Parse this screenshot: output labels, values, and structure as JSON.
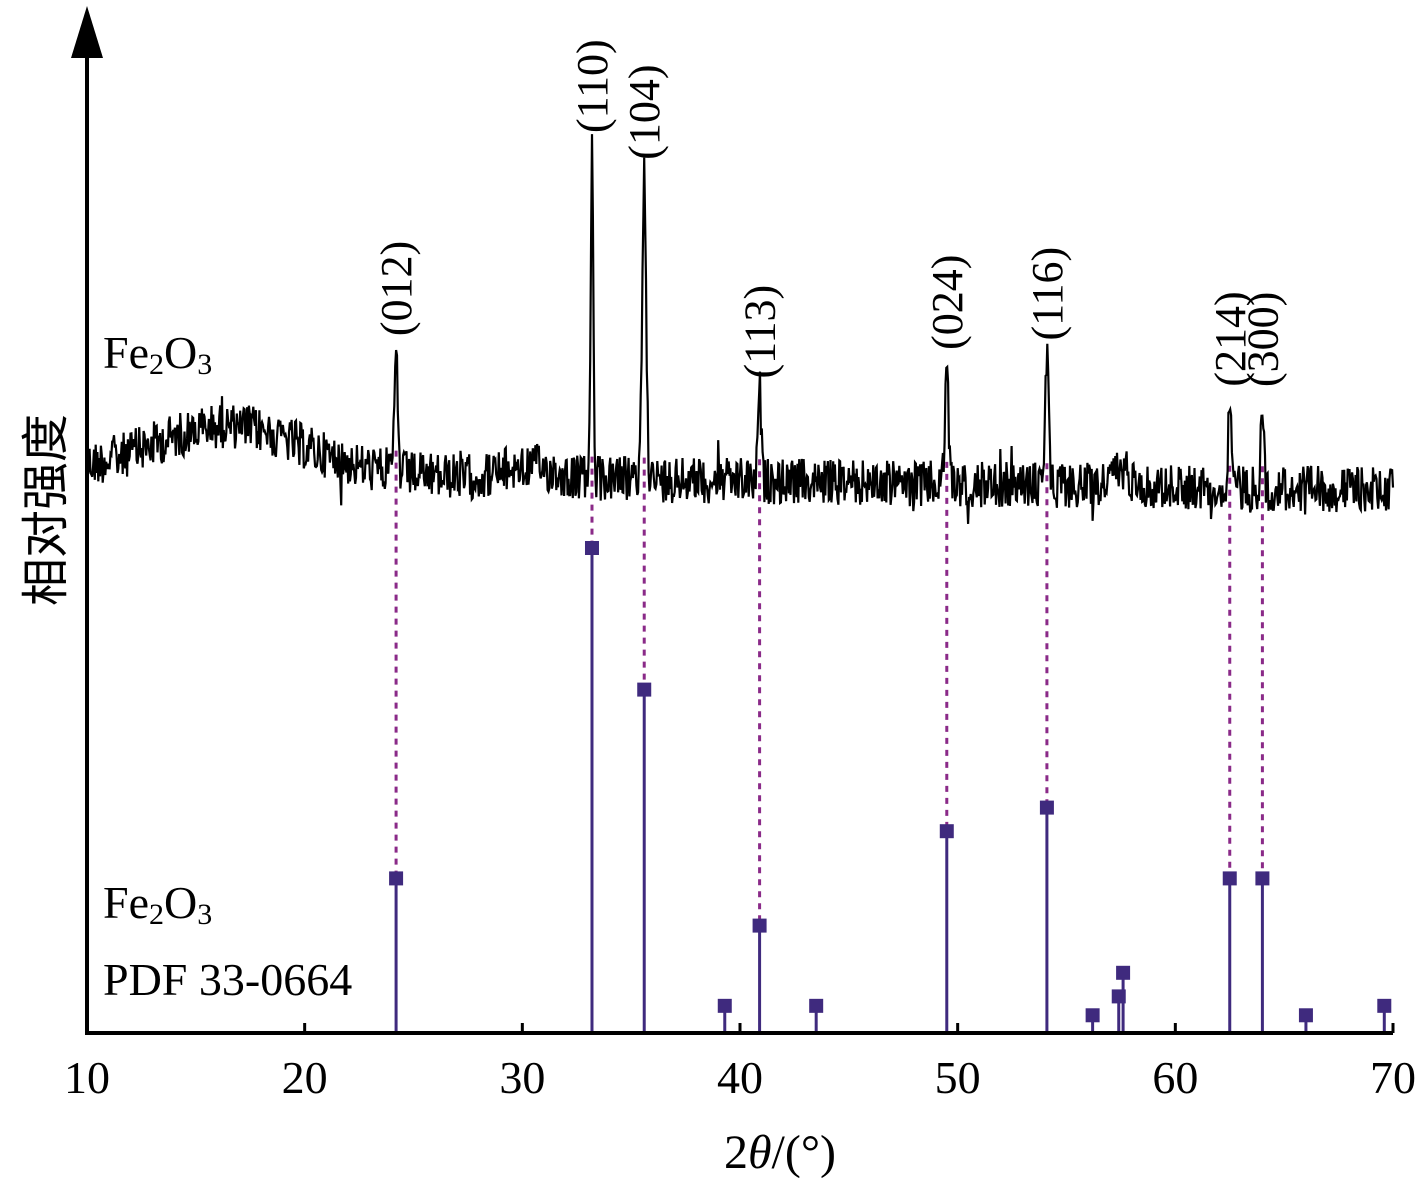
{
  "chart_data": {
    "type": "line",
    "xlabel_prefix": "2",
    "xlabel_symbol": "θ",
    "xlabel_unit": "/(°)",
    "ylabel": "相对强度",
    "xlim": [
      10,
      70
    ],
    "x_ticks": [
      "10",
      "20",
      "30",
      "40",
      "50",
      "60",
      "70"
    ],
    "grid": false,
    "colors": {
      "pattern": "#000000",
      "reference": "#3f2a7e",
      "connector": "#8a2a88"
    },
    "measured": {
      "label_main": "Fe",
      "label_sub1": "2",
      "label_mid": "O",
      "label_sub2": "3",
      "peaks": [
        {
          "x": 24.2,
          "height": 0.38,
          "width": 0.1,
          "label": "(012)"
        },
        {
          "x": 33.2,
          "height": 1.0,
          "width": 0.08,
          "label": "(110)"
        },
        {
          "x": 35.6,
          "height": 0.92,
          "width": 0.13,
          "label": "(104)"
        },
        {
          "x": 40.9,
          "height": 0.27,
          "width": 0.1,
          "label": "(113)"
        },
        {
          "x": 49.5,
          "height": 0.36,
          "width": 0.11,
          "label": "(024)"
        },
        {
          "x": 54.1,
          "height": 0.39,
          "width": 0.12,
          "label": "(116)"
        },
        {
          "x": 62.5,
          "height": 0.26,
          "width": 0.11,
          "label": "(214)"
        },
        {
          "x": 64.0,
          "height": 0.26,
          "width": 0.09,
          "label": "(300)"
        }
      ]
    },
    "reference": {
      "label_main": "Fe",
      "label_sub1": "2",
      "label_mid": "O",
      "label_sub2": "3",
      "label_line2": "PDF 33-0664",
      "sticks": [
        {
          "x": 24.2,
          "intensity": 30
        },
        {
          "x": 33.2,
          "intensity": 100
        },
        {
          "x": 35.6,
          "intensity": 70
        },
        {
          "x": 39.3,
          "intensity": 3
        },
        {
          "x": 40.9,
          "intensity": 20
        },
        {
          "x": 43.5,
          "intensity": 3
        },
        {
          "x": 49.5,
          "intensity": 40
        },
        {
          "x": 54.1,
          "intensity": 45
        },
        {
          "x": 56.2,
          "intensity": 1
        },
        {
          "x": 57.4,
          "intensity": 5
        },
        {
          "x": 57.6,
          "intensity": 10
        },
        {
          "x": 62.5,
          "intensity": 30
        },
        {
          "x": 64.0,
          "intensity": 30
        },
        {
          "x": 66.0,
          "intensity": 1
        },
        {
          "x": 69.6,
          "intensity": 3
        }
      ],
      "connected_indices": [
        0,
        1,
        2,
        4,
        6,
        7,
        11,
        12
      ]
    }
  }
}
